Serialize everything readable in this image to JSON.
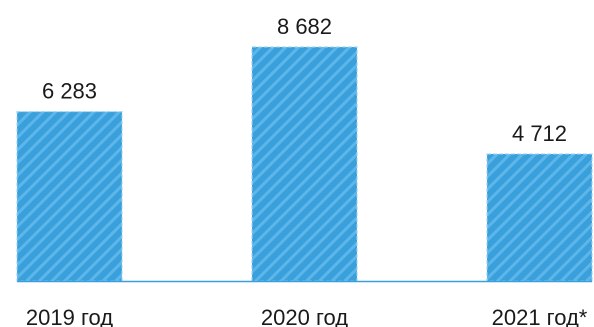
{
  "chart_data": {
    "type": "bar",
    "categories": [
      "2019 год",
      "2020 год",
      "2021 год*"
    ],
    "values": [
      6283,
      8682,
      4712
    ],
    "value_labels": [
      "6 283",
      "8 682",
      "4 712"
    ],
    "title": "",
    "xlabel": "",
    "ylabel": "",
    "ylim": [
      0,
      8682
    ],
    "grid": false,
    "legend": "none",
    "colors": {
      "bar_fill": "#3aa0dc",
      "bar_stripe": "#5cb6ea",
      "bar_border": "#9fd2f0",
      "axis_line": "#3aa0dc",
      "text": "#1a1a1a"
    }
  }
}
